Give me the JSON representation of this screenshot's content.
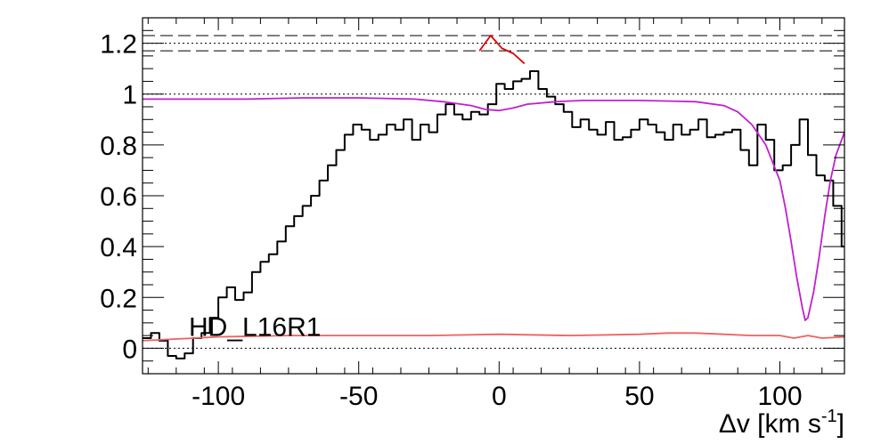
{
  "chart_data": {
    "type": "line",
    "title": "",
    "xlabel": "Δv [km s",
    "xlabel_sup": "-1",
    "xlabel_end": "]",
    "ylabel": "",
    "xlim": [
      -127,
      123
    ],
    "ylim": [
      -0.1,
      1.3
    ],
    "xticks": [
      -100,
      -50,
      0,
      50,
      100
    ],
    "xtick_labels": [
      "-100",
      "-50",
      "0",
      "50",
      "100"
    ],
    "yticks": [
      0,
      0.2,
      0.4,
      0.6,
      0.8,
      1,
      1.2
    ],
    "ytick_labels": [
      "0",
      "0.2",
      "0.4",
      "0.6",
      "0.8",
      "1",
      "1.2"
    ],
    "annotation": "HD_L16R1",
    "grid": false,
    "legend": "none",
    "colors": {
      "data": "#000000",
      "model": "#c020d0",
      "error": "#f06060",
      "marker": "#dd0000",
      "reference": "#000000"
    },
    "reference_lines": {
      "dotted": [
        0,
        1,
        1.2
      ],
      "dashed": [
        1.17,
        1.23
      ]
    },
    "series": [
      {
        "style": "step",
        "x": [
          -127,
          -124,
          -121,
          -118,
          -115,
          -112,
          -109,
          -106,
          -103,
          -100,
          -97,
          -94,
          -91,
          -88,
          -85,
          -82,
          -79,
          -76,
          -73,
          -70,
          -67,
          -64,
          -61,
          -58,
          -55,
          -52,
          -49,
          -46,
          -43,
          -40,
          -37,
          -34,
          -31,
          -28,
          -25,
          -22,
          -19,
          -16,
          -13,
          -10,
          -7,
          -4,
          -1,
          2,
          5,
          8,
          11,
          14,
          17,
          20,
          23,
          26,
          29,
          32,
          35,
          38,
          41,
          44,
          47,
          50,
          53,
          56,
          59,
          62,
          65,
          68,
          71,
          74,
          77,
          80,
          83,
          86,
          89,
          92,
          95,
          98,
          101,
          104,
          107,
          110,
          113,
          116,
          119,
          122
        ],
        "y": [
          0.04,
          0.06,
          0.03,
          -0.03,
          -0.04,
          -0.02,
          0.04,
          0.06,
          0.12,
          0.2,
          0.24,
          0.19,
          0.22,
          0.3,
          0.34,
          0.37,
          0.42,
          0.48,
          0.52,
          0.56,
          0.6,
          0.66,
          0.72,
          0.78,
          0.84,
          0.88,
          0.86,
          0.82,
          0.84,
          0.88,
          0.86,
          0.9,
          0.82,
          0.88,
          0.85,
          0.92,
          0.96,
          0.92,
          0.9,
          0.93,
          0.92,
          0.96,
          1.04,
          1.02,
          1.05,
          1.06,
          1.09,
          1.02,
          0.99,
          0.96,
          0.93,
          0.87,
          0.9,
          0.86,
          0.84,
          0.89,
          0.82,
          0.83,
          0.86,
          0.9,
          0.88,
          0.85,
          0.82,
          0.88,
          0.84,
          0.86,
          0.9,
          0.83,
          0.84,
          0.85,
          0.86,
          0.78,
          0.72,
          0.88,
          0.82,
          0.7,
          0.72,
          0.8,
          0.9,
          0.76,
          0.68,
          0.66,
          0.56,
          0.4
        ]
      },
      {
        "style": "smooth",
        "x": [
          -127,
          -110,
          -90,
          -70,
          -50,
          -30,
          -20,
          -10,
          -5,
          0,
          5,
          10,
          20,
          30,
          50,
          70,
          80,
          85,
          90,
          95,
          100,
          102,
          104,
          106,
          108,
          109,
          110,
          112,
          114,
          116,
          118,
          120,
          123
        ],
        "y": [
          0.98,
          0.98,
          0.98,
          0.985,
          0.985,
          0.98,
          0.97,
          0.955,
          0.94,
          0.935,
          0.945,
          0.96,
          0.97,
          0.975,
          0.975,
          0.97,
          0.955,
          0.93,
          0.88,
          0.8,
          0.66,
          0.55,
          0.42,
          0.28,
          0.16,
          0.11,
          0.12,
          0.22,
          0.36,
          0.52,
          0.66,
          0.76,
          0.85
        ]
      },
      {
        "style": "smooth",
        "x": [
          -127,
          -100,
          -75,
          -50,
          -25,
          0,
          25,
          50,
          60,
          70,
          80,
          90,
          100,
          105,
          110,
          115,
          123
        ],
        "y": [
          0.03,
          0.045,
          0.05,
          0.05,
          0.05,
          0.055,
          0.05,
          0.055,
          0.06,
          0.06,
          0.055,
          0.05,
          0.05,
          0.04,
          0.05,
          0.04,
          0.045
        ]
      },
      {
        "style": "line",
        "x": [
          -7,
          -3,
          1,
          5,
          9
        ],
        "y": [
          1.17,
          1.23,
          1.18,
          1.16,
          1.12
        ]
      }
    ]
  }
}
